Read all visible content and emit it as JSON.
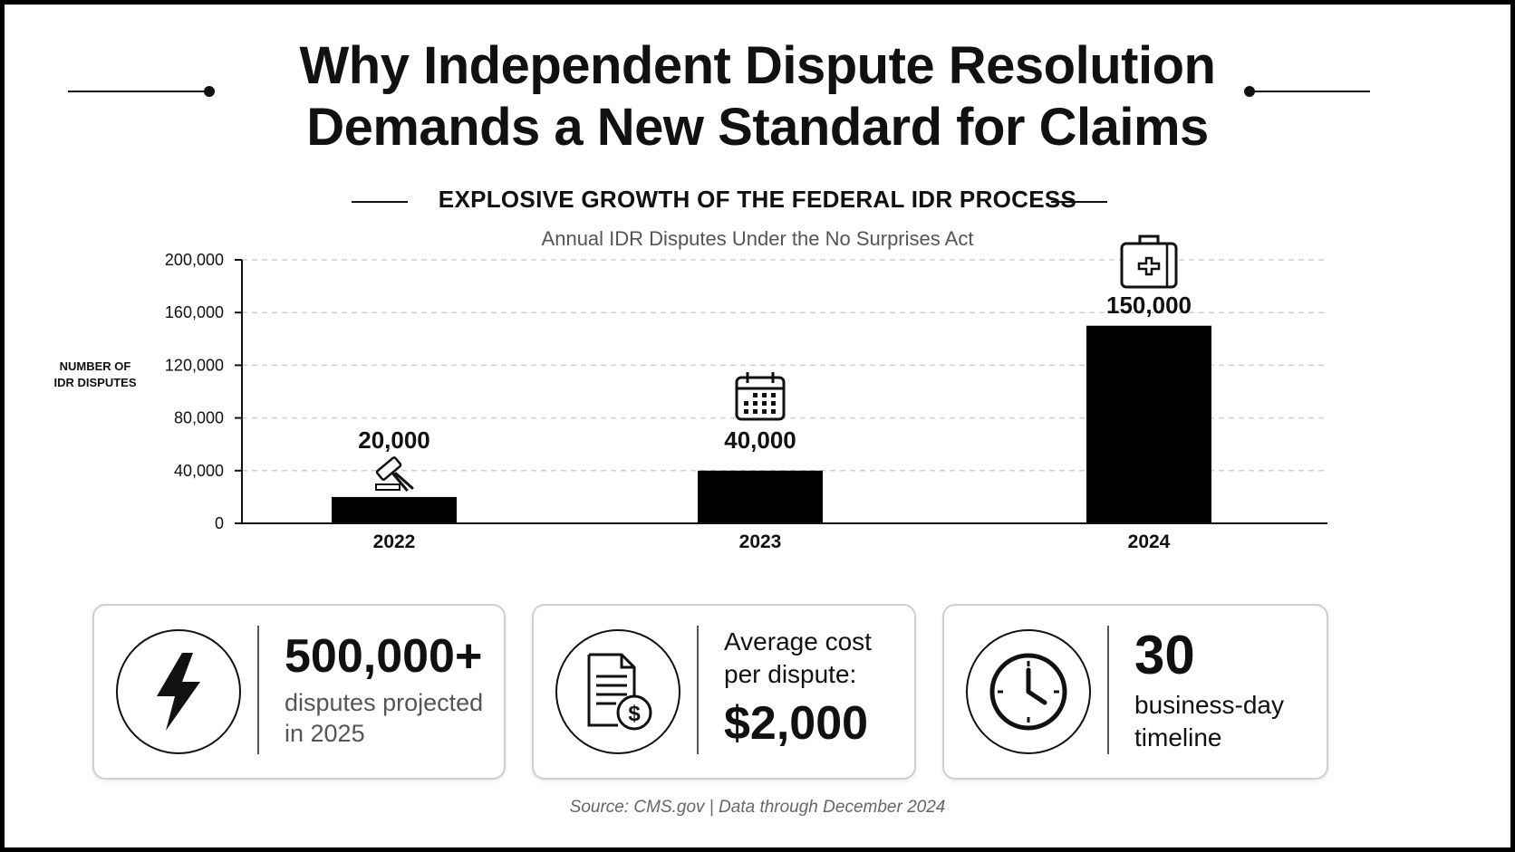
{
  "header": {
    "title_line1": "Why Independent Dispute Resolution",
    "title_line2": "Demands a New Standard for Claims"
  },
  "chart_data": {
    "type": "bar",
    "title": "EXPLOSIVE GROWTH OF THE FEDERAL IDR PROCESS",
    "subtitle": "Annual IDR Disputes Under the No Surprises Act",
    "ylabel_line1": "NUMBER OF",
    "ylabel_line2": "IDR DISPUTES",
    "xlabel": "",
    "categories": [
      "2022",
      "2023",
      "2024"
    ],
    "values": [
      20000,
      40000,
      150000
    ],
    "data_labels": [
      "20,000",
      "40,000",
      "150,000"
    ],
    "bar_icons": [
      "gavel-icon",
      "calendar-icon",
      "medical-kit-icon"
    ],
    "ylim": [
      0,
      200000
    ],
    "yticks": [
      0,
      40000,
      80000,
      120000,
      160000,
      200000
    ],
    "ytick_labels": [
      "0",
      "40,000",
      "80,000",
      "120,000",
      "160,000",
      "200,000"
    ],
    "grid": true,
    "colors": {
      "bar": "#000000",
      "grid": "#d0d0d0",
      "axis": "#111111"
    }
  },
  "stats": [
    {
      "icon": "lightning-icon",
      "big": "500,000+",
      "line1": "disputes projected",
      "line2": "in 2025"
    },
    {
      "icon": "invoice-dollar-icon",
      "line1": "Average cost",
      "line2": "per dispute:",
      "big": "$2,000"
    },
    {
      "icon": "clock-icon",
      "big": "30",
      "line1": "business-day",
      "line2": "timeline"
    }
  ],
  "footer": {
    "source": "Source: CMS.gov | Data through December 2024"
  }
}
